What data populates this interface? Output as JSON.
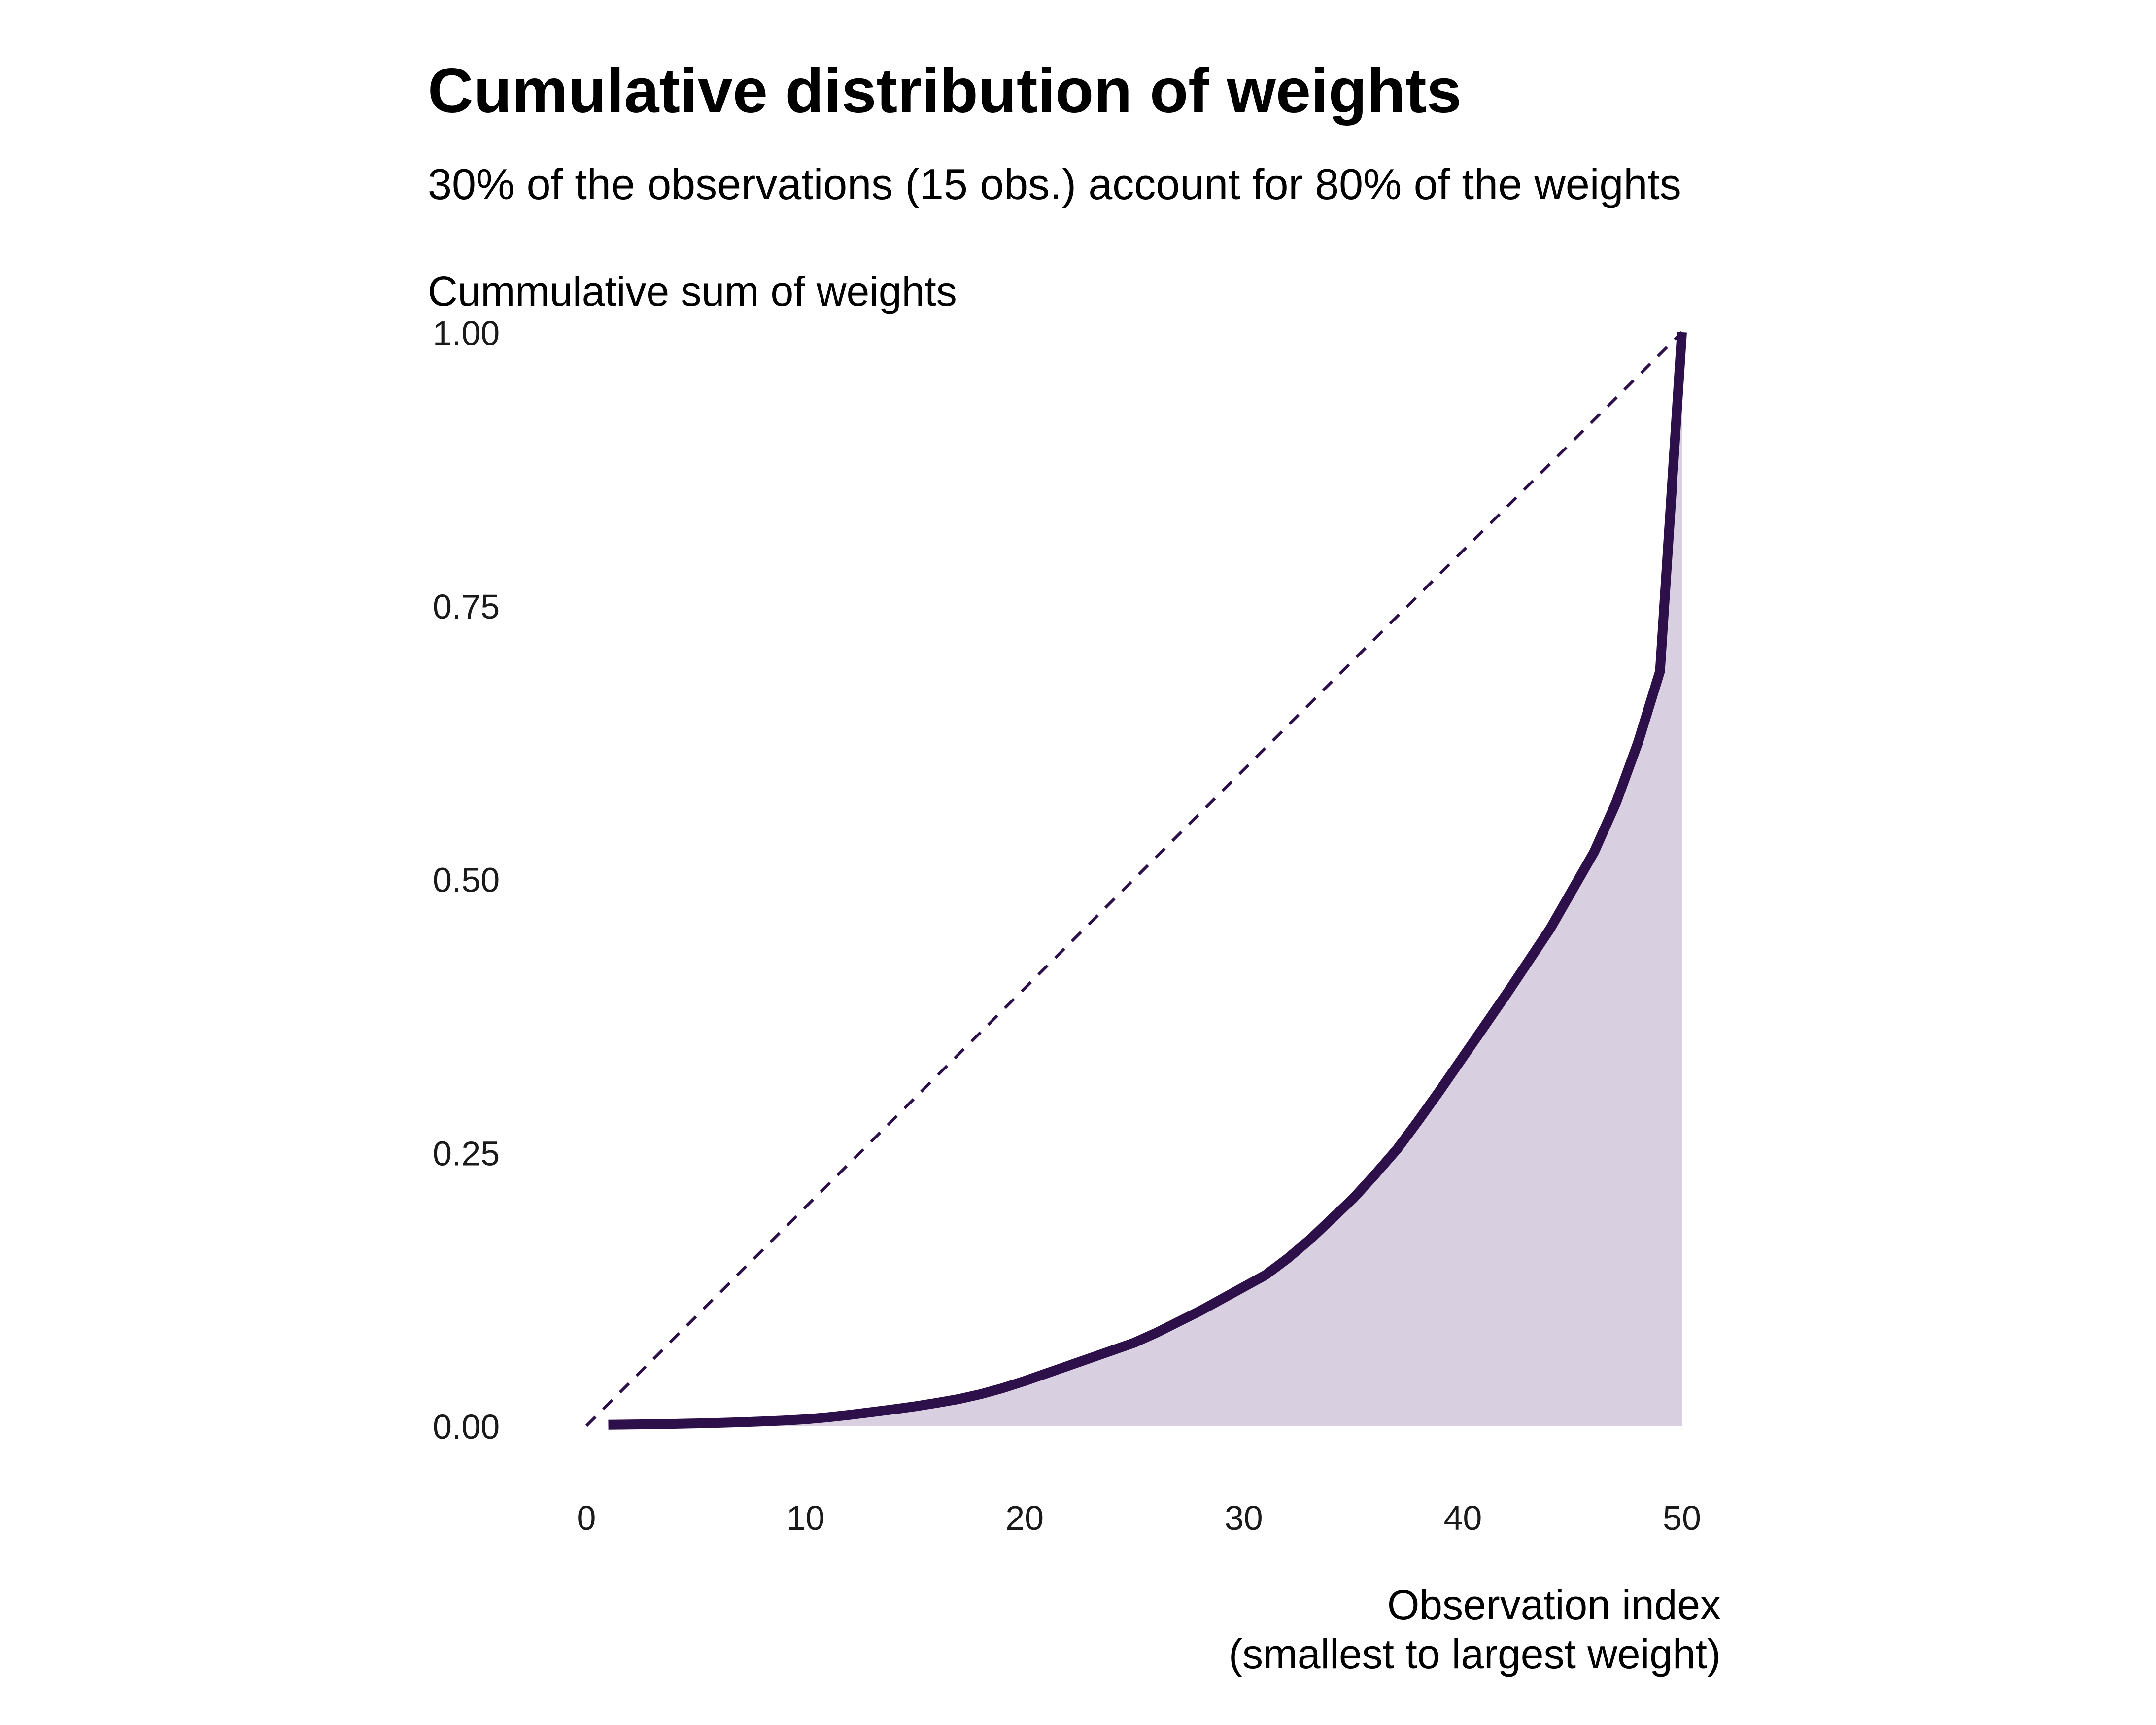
{
  "chart_data": {
    "type": "area",
    "title": "Cumulative distribution of weights",
    "subtitle": "30% of the observations (15 obs.) account for 80% of the weights",
    "ylabel": "Cummulative sum of weights",
    "xlabel_lines": [
      "Observation index",
      "(smallest to largest weight)"
    ],
    "xlim": [
      0,
      50
    ],
    "ylim": [
      0,
      1
    ],
    "x_ticks": [
      0,
      10,
      20,
      30,
      40,
      50
    ],
    "x_tick_labels": [
      "0",
      "10",
      "20",
      "30",
      "40",
      "50"
    ],
    "y_ticks": [
      0,
      0.25,
      0.5,
      0.75,
      1
    ],
    "y_tick_labels": [
      "0.00",
      "0.25",
      "0.50",
      "0.75",
      "1.00"
    ],
    "grid": false,
    "legend": "none",
    "colors": {
      "line": "#2d0f49",
      "fill": "#d8cfe0",
      "reference": "#2d0f49"
    },
    "reference_line": {
      "style": "dashed",
      "from": [
        0,
        0
      ],
      "to": [
        50,
        1
      ]
    },
    "series": [
      {
        "name": "Cumulative sum of weights",
        "x": [
          1,
          2,
          3,
          4,
          5,
          6,
          7,
          8,
          9,
          10,
          11,
          12,
          13,
          14,
          15,
          16,
          17,
          18,
          19,
          20,
          21,
          22,
          23,
          24,
          25,
          26,
          27,
          28,
          29,
          30,
          31,
          32,
          33,
          34,
          35,
          36,
          37,
          38,
          39,
          40,
          41,
          42,
          43,
          44,
          45,
          46,
          47,
          48,
          49,
          50
        ],
        "values": [
          0.001,
          0.0012,
          0.0015,
          0.0018,
          0.0022,
          0.0027,
          0.0033,
          0.004,
          0.0048,
          0.006,
          0.0078,
          0.01,
          0.0125,
          0.015,
          0.0178,
          0.021,
          0.0245,
          0.029,
          0.0345,
          0.041,
          0.048,
          0.055,
          0.062,
          0.069,
          0.076,
          0.085,
          0.095,
          0.105,
          0.116,
          0.127,
          0.138,
          0.153,
          0.17,
          0.189,
          0.208,
          0.23,
          0.253,
          0.28,
          0.308,
          0.337,
          0.366,
          0.395,
          0.425,
          0.455,
          0.49,
          0.525,
          0.57,
          0.625,
          0.69,
          1.0
        ]
      }
    ]
  }
}
